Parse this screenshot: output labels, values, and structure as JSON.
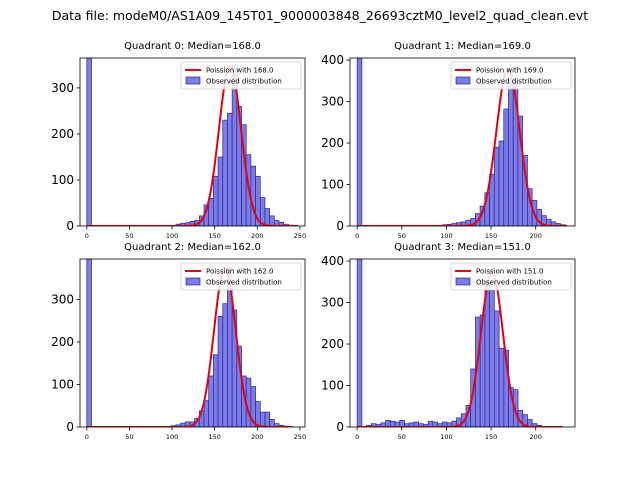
{
  "figure_title": "Data file: modeM0/AS1A09_145T01_9000003848_26693cztM0_level2_quad_clean.evt",
  "colors": {
    "bar_fill": "#7b7bea",
    "bar_edge": "#2a2a8c",
    "poisson_line": "#e8000b"
  },
  "chart_data": [
    {
      "type": "bar",
      "title": "Quadrant 0: Median=168.0",
      "legend": {
        "poisson": "Poission with 168.0",
        "observed": "Observed distribution",
        "placement": "top-right"
      },
      "xlim": [
        -8,
        256
      ],
      "ylim": [
        0,
        365
      ],
      "xticks": [
        0,
        50,
        100,
        150,
        200,
        250
      ],
      "yticks": [
        0,
        100,
        200,
        300
      ],
      "bin_width": 5.5,
      "bins": [
        {
          "x": 0,
          "y": 365
        },
        {
          "x": 104.5,
          "y": 4
        },
        {
          "x": 110,
          "y": 6
        },
        {
          "x": 115.5,
          "y": 7
        },
        {
          "x": 121,
          "y": 10
        },
        {
          "x": 126.5,
          "y": 12
        },
        {
          "x": 132,
          "y": 22
        },
        {
          "x": 137.5,
          "y": 46
        },
        {
          "x": 143,
          "y": 60
        },
        {
          "x": 148.5,
          "y": 108
        },
        {
          "x": 154,
          "y": 150
        },
        {
          "x": 159.5,
          "y": 230
        },
        {
          "x": 165,
          "y": 245
        },
        {
          "x": 170.5,
          "y": 350
        },
        {
          "x": 176,
          "y": 260
        },
        {
          "x": 181.5,
          "y": 220
        },
        {
          "x": 187,
          "y": 155
        },
        {
          "x": 192.5,
          "y": 130
        },
        {
          "x": 198,
          "y": 108
        },
        {
          "x": 203.5,
          "y": 62
        },
        {
          "x": 209,
          "y": 38
        },
        {
          "x": 214.5,
          "y": 22
        },
        {
          "x": 220,
          "y": 12
        },
        {
          "x": 225.5,
          "y": 8
        },
        {
          "x": 231,
          "y": 4
        },
        {
          "x": 236.5,
          "y": 2
        },
        {
          "x": 242,
          "y": 1
        }
      ],
      "poisson": {
        "mean": 168.0,
        "peak": 348,
        "x_start": 0,
        "x_end": 248
      }
    },
    {
      "type": "bar",
      "title": "Quadrant 1: Median=169.0",
      "legend": {
        "poisson": "Poission with 169.0",
        "observed": "Observed distribution",
        "placement": "top-right"
      },
      "xlim": [
        -8,
        244
      ],
      "ylim": [
        0,
        405
      ],
      "xticks": [
        0,
        50,
        100,
        150,
        200
      ],
      "yticks": [
        0,
        100,
        200,
        300,
        400
      ],
      "bin_width": 5.3,
      "bins": [
        {
          "x": 0,
          "y": 405
        },
        {
          "x": 95.3,
          "y": 3
        },
        {
          "x": 100.6,
          "y": 4
        },
        {
          "x": 105.9,
          "y": 6
        },
        {
          "x": 111.2,
          "y": 8
        },
        {
          "x": 116.5,
          "y": 10
        },
        {
          "x": 121.8,
          "y": 14
        },
        {
          "x": 127.1,
          "y": 18
        },
        {
          "x": 132.4,
          "y": 30
        },
        {
          "x": 137.7,
          "y": 48
        },
        {
          "x": 143,
          "y": 80
        },
        {
          "x": 148.3,
          "y": 125
        },
        {
          "x": 153.6,
          "y": 190
        },
        {
          "x": 158.9,
          "y": 205
        },
        {
          "x": 164.2,
          "y": 282
        },
        {
          "x": 169.5,
          "y": 355
        },
        {
          "x": 174.8,
          "y": 350
        },
        {
          "x": 180.1,
          "y": 265
        },
        {
          "x": 185.4,
          "y": 170
        },
        {
          "x": 190.7,
          "y": 90
        },
        {
          "x": 196,
          "y": 62
        },
        {
          "x": 201.3,
          "y": 40
        },
        {
          "x": 206.6,
          "y": 25
        },
        {
          "x": 211.9,
          "y": 16
        },
        {
          "x": 217.2,
          "y": 10
        },
        {
          "x": 222.5,
          "y": 6
        },
        {
          "x": 227.8,
          "y": 3
        }
      ],
      "poisson": {
        "mean": 169.0,
        "peak": 380,
        "x_start": 0,
        "x_end": 235
      }
    },
    {
      "type": "bar",
      "title": "Quadrant 2: Median=162.0",
      "legend": {
        "poisson": "Poission with 162.0",
        "observed": "Observed distribution",
        "placement": "top-right"
      },
      "xlim": [
        -8,
        256
      ],
      "ylim": [
        0,
        395
      ],
      "xticks": [
        0,
        50,
        100,
        150,
        200,
        250
      ],
      "yticks": [
        0,
        100,
        200,
        300
      ],
      "bin_width": 5.5,
      "bins": [
        {
          "x": 0,
          "y": 395
        },
        {
          "x": 99,
          "y": 3
        },
        {
          "x": 104.5,
          "y": 5
        },
        {
          "x": 110,
          "y": 9
        },
        {
          "x": 115.5,
          "y": 12
        },
        {
          "x": 121,
          "y": 12
        },
        {
          "x": 126.5,
          "y": 20
        },
        {
          "x": 132,
          "y": 38
        },
        {
          "x": 137.5,
          "y": 62
        },
        {
          "x": 143,
          "y": 120
        },
        {
          "x": 148.5,
          "y": 170
        },
        {
          "x": 154,
          "y": 260
        },
        {
          "x": 159.5,
          "y": 290
        },
        {
          "x": 165,
          "y": 375
        },
        {
          "x": 170.5,
          "y": 275
        },
        {
          "x": 176,
          "y": 190
        },
        {
          "x": 181.5,
          "y": 120
        },
        {
          "x": 187,
          "y": 115
        },
        {
          "x": 192.5,
          "y": 95
        },
        {
          "x": 198,
          "y": 60
        },
        {
          "x": 203.5,
          "y": 35
        },
        {
          "x": 209,
          "y": 35
        },
        {
          "x": 214.5,
          "y": 18
        },
        {
          "x": 220,
          "y": 8
        },
        {
          "x": 225.5,
          "y": 4
        },
        {
          "x": 231,
          "y": 2
        },
        {
          "x": 236.5,
          "y": 1
        }
      ],
      "poisson": {
        "mean": 162.0,
        "peak": 375,
        "x_start": 0,
        "x_end": 240
      }
    },
    {
      "type": "bar",
      "title": "Quadrant 3: Median=151.0",
      "legend": {
        "poisson": "Poission with 151.0",
        "observed": "Observed distribution",
        "placement": "top-right"
      },
      "xlim": [
        -8,
        244
      ],
      "ylim": [
        0,
        405
      ],
      "xticks": [
        0,
        50,
        100,
        150,
        200
      ],
      "yticks": [
        0,
        100,
        200,
        300,
        400
      ],
      "bin_width": 5.3,
      "bins": [
        {
          "x": 0,
          "y": 405
        },
        {
          "x": 10.6,
          "y": 4
        },
        {
          "x": 15.9,
          "y": 8
        },
        {
          "x": 21.2,
          "y": 6
        },
        {
          "x": 26.5,
          "y": 10
        },
        {
          "x": 31.8,
          "y": 16
        },
        {
          "x": 37.1,
          "y": 14
        },
        {
          "x": 42.4,
          "y": 12
        },
        {
          "x": 47.7,
          "y": 16
        },
        {
          "x": 53,
          "y": 8
        },
        {
          "x": 58.3,
          "y": 10
        },
        {
          "x": 63.6,
          "y": 12
        },
        {
          "x": 68.9,
          "y": 8
        },
        {
          "x": 74.2,
          "y": 6
        },
        {
          "x": 79.5,
          "y": 14
        },
        {
          "x": 84.8,
          "y": 12
        },
        {
          "x": 90.1,
          "y": 8
        },
        {
          "x": 95.4,
          "y": 12
        },
        {
          "x": 100.7,
          "y": 10
        },
        {
          "x": 106,
          "y": 14
        },
        {
          "x": 111.3,
          "y": 22
        },
        {
          "x": 116.6,
          "y": 32
        },
        {
          "x": 121.9,
          "y": 52
        },
        {
          "x": 127.2,
          "y": 140
        },
        {
          "x": 132.5,
          "y": 265
        },
        {
          "x": 137.8,
          "y": 270
        },
        {
          "x": 143.1,
          "y": 350
        },
        {
          "x": 148.4,
          "y": 330
        },
        {
          "x": 153.7,
          "y": 280
        },
        {
          "x": 159,
          "y": 190
        },
        {
          "x": 164.3,
          "y": 185
        },
        {
          "x": 169.6,
          "y": 95
        },
        {
          "x": 174.9,
          "y": 90
        },
        {
          "x": 180.2,
          "y": 40
        },
        {
          "x": 185.5,
          "y": 30
        },
        {
          "x": 190.8,
          "y": 18
        },
        {
          "x": 196.1,
          "y": 8
        },
        {
          "x": 201.4,
          "y": 4
        }
      ],
      "poisson": {
        "mean": 151.0,
        "peak": 375,
        "x_start": 0,
        "x_end": 230
      }
    }
  ]
}
